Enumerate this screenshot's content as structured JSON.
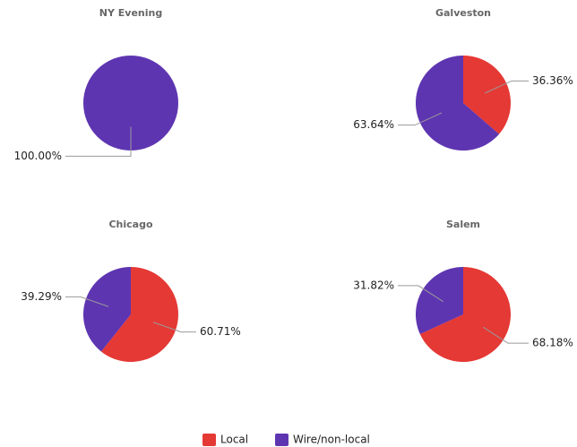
{
  "chart_data": [
    {
      "type": "pie",
      "title": "NY Evening",
      "categories": [
        "Wire/non-local"
      ],
      "values": [
        100
      ],
      "value_labels": [
        "100.00%"
      ],
      "colors": [
        "#5e35b1"
      ]
    },
    {
      "type": "pie",
      "title": "Galveston",
      "categories": [
        "Local",
        "Wire/non-local"
      ],
      "values": [
        36.36,
        63.64
      ],
      "value_labels": [
        "36.36%",
        "63.64%"
      ],
      "colors": [
        "#e53935",
        "#5e35b1"
      ]
    },
    {
      "type": "pie",
      "title": "Chicago",
      "categories": [
        "Local",
        "Wire/non-local"
      ],
      "values": [
        60.71,
        39.29
      ],
      "value_labels": [
        "60.71%",
        "39.29%"
      ],
      "colors": [
        "#e53935",
        "#5e35b1"
      ]
    },
    {
      "type": "pie",
      "title": "Salem",
      "categories": [
        "Local",
        "Wire/non-local"
      ],
      "values": [
        68.18,
        31.82
      ],
      "value_labels": [
        "68.18%",
        "31.82%"
      ],
      "colors": [
        "#e53935",
        "#5e35b1"
      ]
    }
  ],
  "legend": {
    "labels": [
      "Local",
      "Wire/non-local"
    ],
    "colors": [
      "#e53935",
      "#5e35b1"
    ]
  }
}
